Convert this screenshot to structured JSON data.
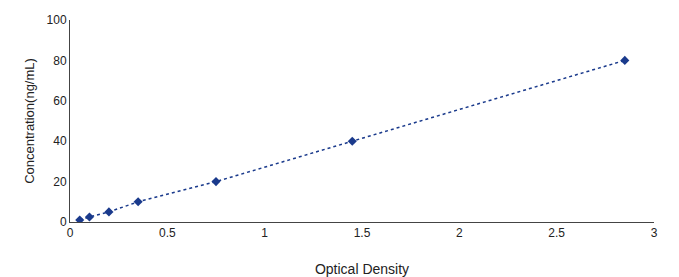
{
  "chart_data": {
    "type": "line",
    "xlabel": "Optical Density",
    "ylabel": "Concentration(ng/mL)",
    "x": [
      0.05,
      0.1,
      0.2,
      0.35,
      0.75,
      1.45,
      2.85
    ],
    "values": [
      1.0,
      2.5,
      5.0,
      10.0,
      20.0,
      40.0,
      80.0
    ],
    "xlim": [
      0,
      3.0
    ],
    "ylim": [
      0,
      100
    ],
    "xticks": [
      0,
      0.5,
      1,
      1.5,
      2,
      2.5,
      3
    ],
    "yticks": [
      0,
      20,
      40,
      60,
      80,
      100
    ],
    "color": "#1a3a8c",
    "marker": "diamond",
    "line_style": "dotted",
    "grid": false
  }
}
